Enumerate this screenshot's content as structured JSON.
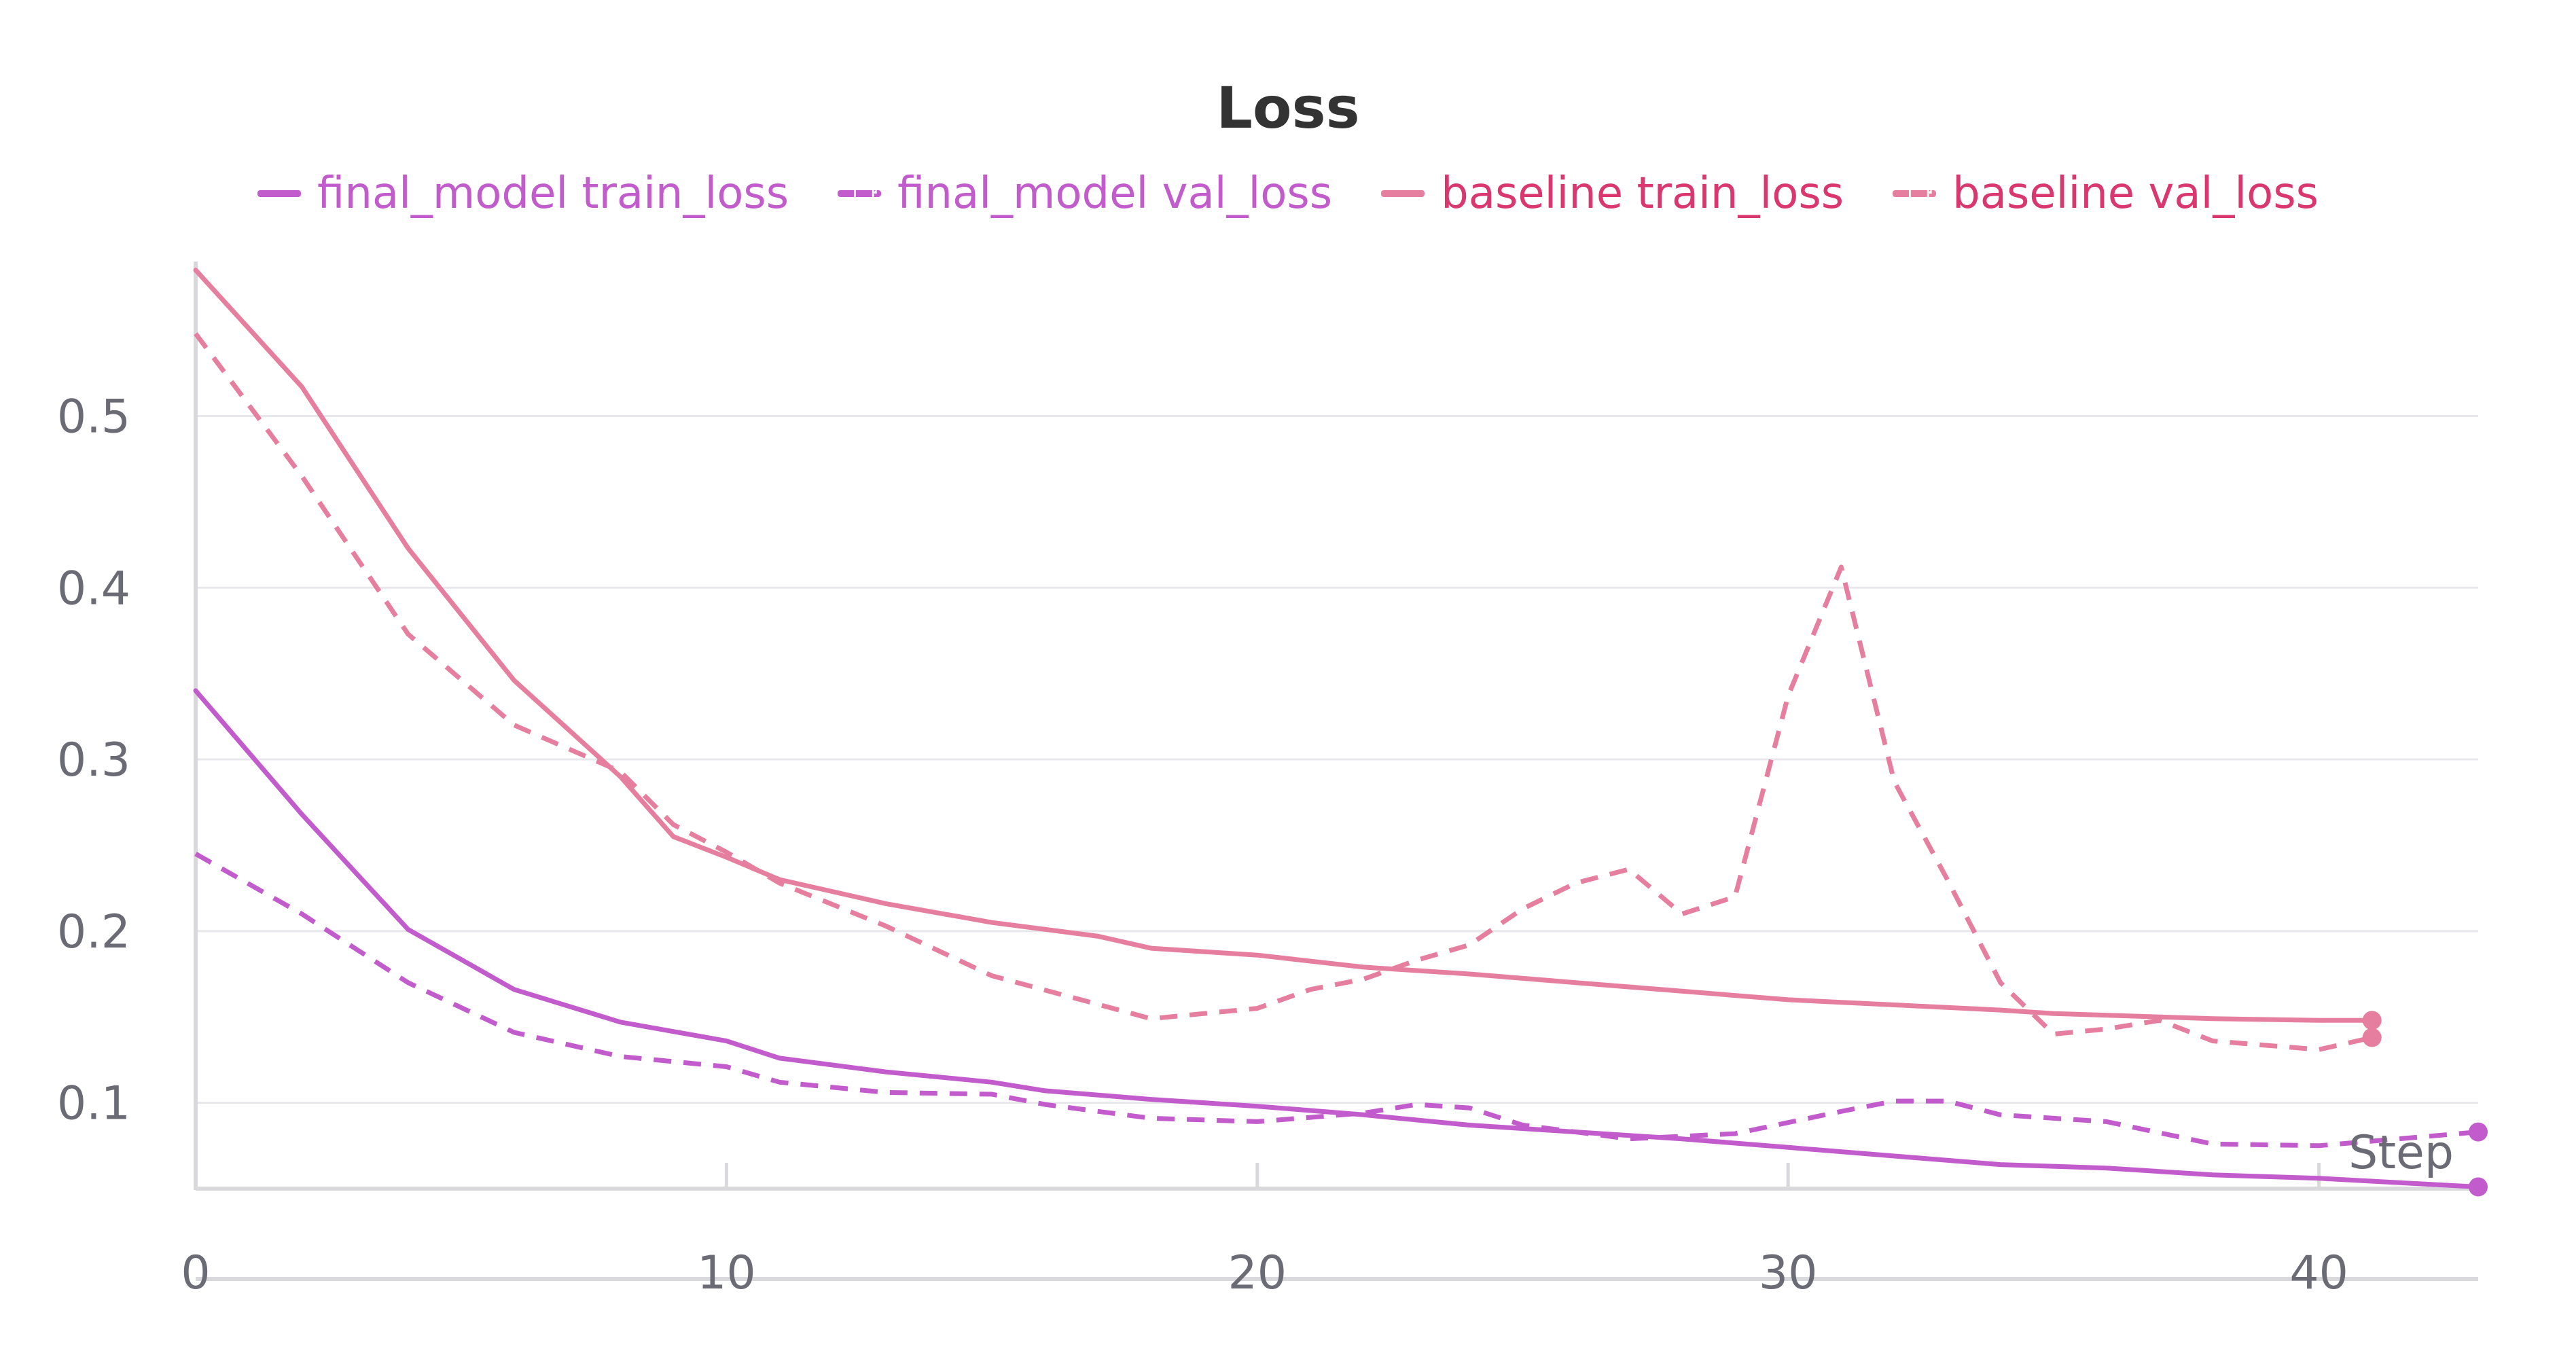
{
  "chart_data": {
    "type": "line",
    "title": "Loss",
    "xlabel": "Step",
    "ylabel": "",
    "xlim": [
      0,
      43
    ],
    "ylim": [
      0.05,
      0.59
    ],
    "x_ticks": [
      0,
      10,
      20,
      30,
      40
    ],
    "y_ticks": [
      0.1,
      0.2,
      0.3,
      0.4,
      0.5
    ],
    "grid": "horizontal",
    "legend_position": "top-center",
    "series": [
      {
        "name": "final_model train_loss",
        "color": "#c25bcc",
        "dash": "solid",
        "x": [
          0,
          2,
          4,
          6,
          8,
          10,
          11,
          13,
          15,
          16,
          18,
          20,
          22,
          24,
          26,
          28,
          30,
          32,
          34,
          36,
          38,
          40,
          43
        ],
        "y": [
          0.34,
          0.268,
          0.201,
          0.166,
          0.147,
          0.136,
          0.126,
          0.118,
          0.112,
          0.107,
          0.102,
          0.098,
          0.093,
          0.087,
          0.083,
          0.079,
          0.074,
          0.069,
          0.064,
          0.062,
          0.058,
          0.056,
          0.051
        ]
      },
      {
        "name": "final_model val_loss",
        "color": "#c25bcc",
        "dash": "dashed",
        "x": [
          0,
          2,
          4,
          6,
          8,
          10,
          11,
          13,
          15,
          16,
          18,
          20,
          22,
          23,
          24,
          25,
          27,
          29,
          31,
          32,
          33,
          34,
          36,
          38,
          40,
          43
        ],
        "y": [
          0.245,
          0.21,
          0.17,
          0.141,
          0.127,
          0.121,
          0.112,
          0.106,
          0.105,
          0.099,
          0.091,
          0.089,
          0.094,
          0.099,
          0.097,
          0.087,
          0.079,
          0.082,
          0.095,
          0.101,
          0.101,
          0.093,
          0.089,
          0.076,
          0.075,
          0.083
        ]
      },
      {
        "name": "baseline train_loss",
        "color": "#e67e9f",
        "dash": "solid",
        "x": [
          0,
          2,
          4,
          6,
          8,
          9,
          10,
          11,
          13,
          15,
          17,
          18,
          20,
          22,
          24,
          26,
          28,
          30,
          32,
          34,
          35,
          37,
          38,
          40,
          41
        ],
        "y": [
          0.585,
          0.517,
          0.423,
          0.346,
          0.29,
          0.255,
          0.243,
          0.23,
          0.216,
          0.205,
          0.197,
          0.19,
          0.186,
          0.179,
          0.175,
          0.17,
          0.165,
          0.16,
          0.157,
          0.154,
          0.152,
          0.15,
          0.149,
          0.148,
          0.148
        ]
      },
      {
        "name": "baseline val_loss",
        "color": "#e67e9f",
        "dash": "dashed",
        "x": [
          0,
          2,
          4,
          6,
          8,
          9,
          10,
          11,
          13,
          15,
          18,
          20,
          21,
          22,
          23,
          24,
          25,
          26,
          27,
          28,
          29,
          30,
          31,
          32,
          33,
          34,
          35,
          36,
          37,
          38,
          40,
          41
        ],
        "y": [
          0.548,
          0.465,
          0.373,
          0.32,
          0.293,
          0.262,
          0.246,
          0.228,
          0.203,
          0.174,
          0.149,
          0.155,
          0.166,
          0.172,
          0.183,
          0.192,
          0.213,
          0.228,
          0.236,
          0.21,
          0.22,
          0.337,
          0.412,
          0.287,
          0.23,
          0.17,
          0.14,
          0.143,
          0.148,
          0.136,
          0.131,
          0.138
        ]
      }
    ]
  },
  "legend_text_colors": {
    "final_model": "#c25bcc",
    "baseline": "#d9376e"
  }
}
